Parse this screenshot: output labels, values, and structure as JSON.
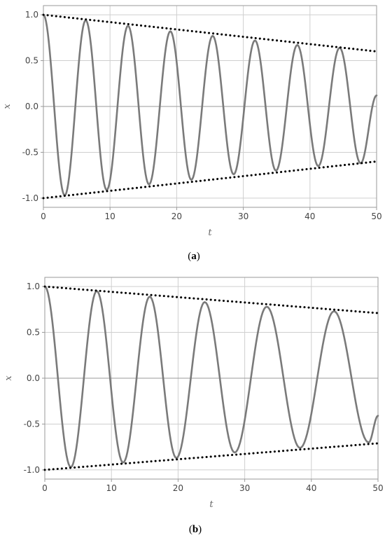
{
  "chart_data": [
    {
      "type": "line",
      "caption_letter": "a",
      "xlabel": "t",
      "ylabel": "x",
      "xlim": [
        0,
        50
      ],
      "ylim": [
        -1.1,
        1.1
      ],
      "x_ticks": [
        0,
        10,
        20,
        30,
        40,
        50
      ],
      "y_ticks": [
        -1.0,
        -0.5,
        0.0,
        0.5,
        1.0
      ],
      "x_tick_labels": [
        "0",
        "10",
        "20",
        "30",
        "40",
        "50"
      ],
      "y_tick_labels": [
        "-1.0",
        "-0.5",
        "0.0",
        "0.5",
        "1.0"
      ],
      "grid": true,
      "series": [
        {
          "style": "solid",
          "color": "#7a7a7a",
          "x": [
            0.0,
            3.2,
            6.35,
            9.5,
            12.7,
            15.85,
            19.05,
            22.2,
            25.4,
            28.55,
            31.75,
            34.9,
            38.1,
            41.25,
            44.45,
            47.6,
            50.0
          ],
          "y": [
            1.0,
            -0.97,
            0.94,
            -0.91,
            0.88,
            -0.85,
            0.82,
            -0.8,
            0.77,
            -0.74,
            0.72,
            -0.7,
            0.67,
            -0.65,
            0.64,
            -0.62,
            0.12
          ]
        },
        {
          "style": "dotted",
          "color": "#000000",
          "x": [
            0,
            50
          ],
          "y": [
            1.0,
            0.6
          ]
        },
        {
          "style": "dotted",
          "color": "#000000",
          "x": [
            0,
            50
          ],
          "y": [
            -1.0,
            -0.6
          ]
        }
      ]
    },
    {
      "type": "line",
      "caption_letter": "b",
      "xlabel": "t",
      "ylabel": "x",
      "xlim": [
        0,
        50
      ],
      "ylim": [
        -1.1,
        1.1
      ],
      "x_ticks": [
        0,
        10,
        20,
        30,
        40,
        50
      ],
      "y_ticks": [
        -1.0,
        -0.5,
        0.0,
        0.5,
        1.0
      ],
      "x_tick_labels": [
        "0",
        "10",
        "20",
        "30",
        "40",
        "50"
      ],
      "y_tick_labels": [
        "-1.0",
        "-0.5",
        "0.0",
        "0.5",
        "1.0"
      ],
      "grid": true,
      "series": [
        {
          "style": "solid",
          "color": "#7a7a7a",
          "x": [
            0.0,
            3.9,
            7.8,
            11.75,
            15.75,
            19.75,
            24.0,
            28.5,
            33.3,
            38.3,
            43.4,
            48.6,
            50.0
          ],
          "y": [
            1.0,
            -0.97,
            0.95,
            -0.92,
            0.89,
            -0.87,
            0.83,
            -0.81,
            0.78,
            -0.76,
            0.73,
            -0.7,
            -0.41
          ]
        },
        {
          "style": "dotted",
          "color": "#000000",
          "x": [
            0,
            50
          ],
          "y": [
            1.0,
            0.71
          ]
        },
        {
          "style": "dotted",
          "color": "#000000",
          "x": [
            0,
            50
          ],
          "y": [
            -1.0,
            -0.71
          ]
        }
      ]
    }
  ]
}
